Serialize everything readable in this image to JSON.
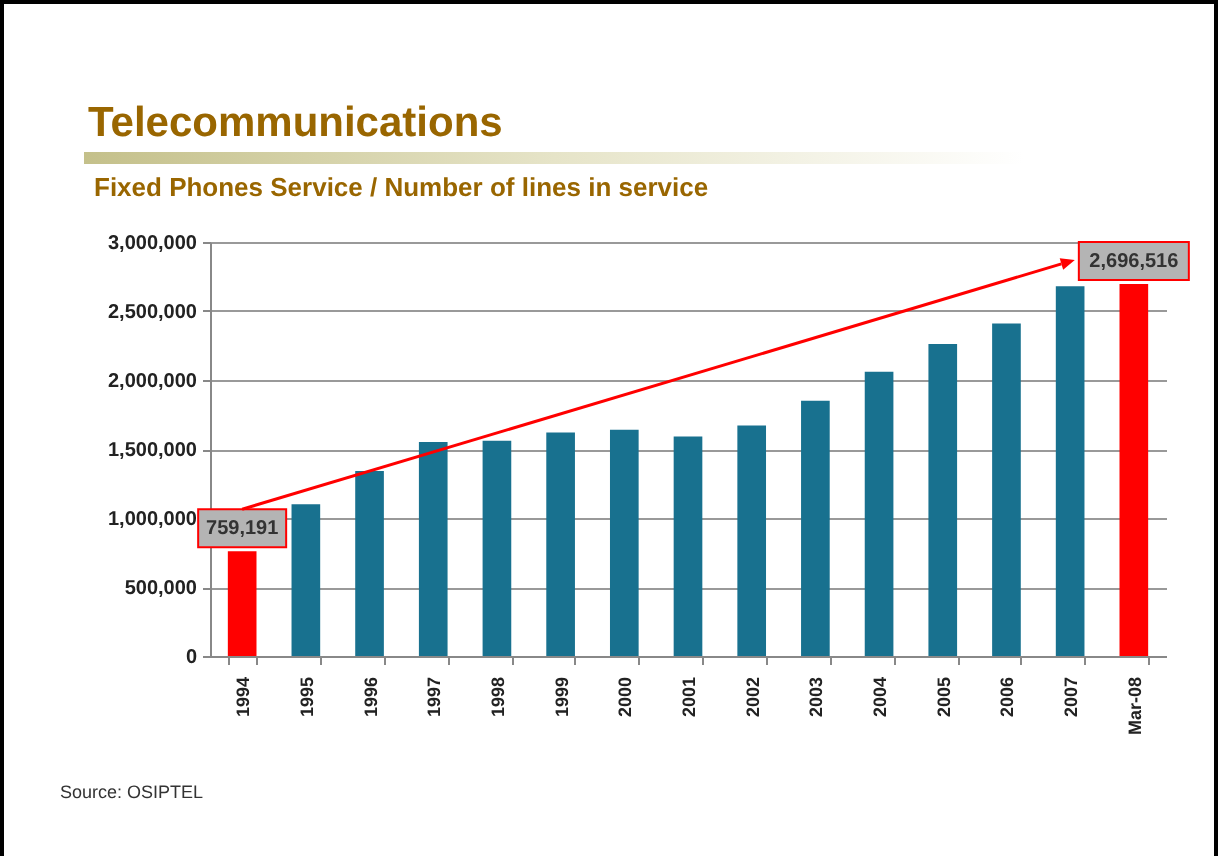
{
  "chart_data": {
    "type": "bar",
    "title": "Telecommunications",
    "subtitle": "Fixed Phones Service / Number of lines in service",
    "categories": [
      "1994",
      "1995",
      "1996",
      "1997",
      "1998",
      "1999",
      "2000",
      "2001",
      "2002",
      "2003",
      "2004",
      "2005",
      "2006",
      "2007",
      "Mar-08"
    ],
    "values": [
      759191,
      1100000,
      1340000,
      1550000,
      1560000,
      1620000,
      1640000,
      1590000,
      1670000,
      1850000,
      2060000,
      2260000,
      2410000,
      2680000,
      2696516
    ],
    "colors": [
      "#ff0000",
      "#18718f",
      "#18718f",
      "#18718f",
      "#18718f",
      "#18718f",
      "#18718f",
      "#18718f",
      "#18718f",
      "#18718f",
      "#18718f",
      "#18718f",
      "#18718f",
      "#18718f",
      "#ff0000"
    ],
    "value_labels": [
      "759,191",
      null,
      null,
      null,
      null,
      null,
      null,
      null,
      null,
      null,
      null,
      null,
      null,
      null,
      "2,696,516"
    ],
    "ylim": [
      0,
      3000000
    ],
    "yticks": [
      0,
      {
        "value": 500000,
        "label": "500,000"
      },
      {
        "value": 1000000,
        "label": "1,000,000"
      },
      {
        "value": 1500000,
        "label": "1,500,000"
      },
      {
        "value": 2000000,
        "label": "2,000,000"
      },
      {
        "value": 2500000,
        "label": "2,500,000"
      },
      {
        "value": 3000000,
        "label": "3,000,000"
      }
    ],
    "grid": "y",
    "annotations": [
      "Source: OSIPTEL"
    ]
  }
}
